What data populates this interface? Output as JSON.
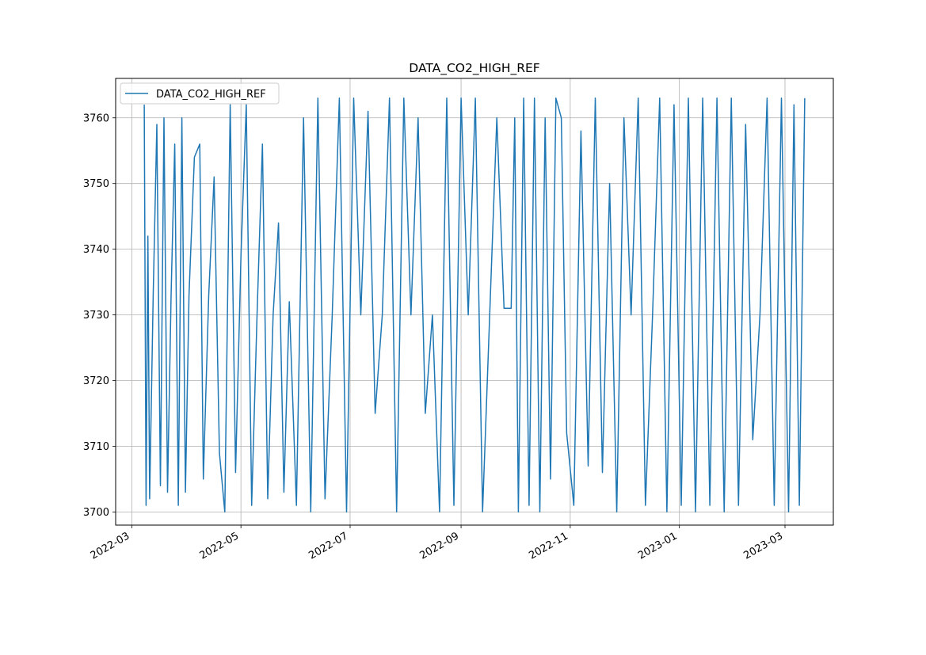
{
  "chart_data": {
    "type": "line",
    "title": "DATA_CO2_HIGH_REF",
    "xlabel": "",
    "ylabel": "",
    "grid": true,
    "legend_position": "top-left",
    "color": "#1f77b4",
    "xlim": [
      "2022-02-20",
      "2023-03-28"
    ],
    "ylim": [
      3698,
      3766
    ],
    "x_ticks": [
      "2022-03-01",
      "2022-05-01",
      "2022-07-01",
      "2022-09-01",
      "2022-11-01",
      "2023-01-01",
      "2023-03-01"
    ],
    "x_tick_labels": [
      "2022-03",
      "2022-05",
      "2022-07",
      "2022-09",
      "2022-11",
      "2023-01",
      "2023-03"
    ],
    "y_ticks": [
      3700,
      3710,
      3720,
      3730,
      3740,
      3750,
      3760
    ],
    "series": [
      {
        "name": "DATA_CO2_HIGH_REF",
        "x": [
          "2022-03-08",
          "2022-03-09",
          "2022-03-10",
          "2022-03-11",
          "2022-03-13",
          "2022-03-15",
          "2022-03-17",
          "2022-03-19",
          "2022-03-21",
          "2022-03-23",
          "2022-03-25",
          "2022-03-27",
          "2022-03-29",
          "2022-03-31",
          "2022-04-02",
          "2022-04-05",
          "2022-04-08",
          "2022-04-10",
          "2022-04-13",
          "2022-04-16",
          "2022-04-19",
          "2022-04-22",
          "2022-04-25",
          "2022-04-28",
          "2022-05-01",
          "2022-05-04",
          "2022-05-07",
          "2022-05-10",
          "2022-05-13",
          "2022-05-16",
          "2022-05-19",
          "2022-05-22",
          "2022-05-25",
          "2022-05-28",
          "2022-06-01",
          "2022-06-05",
          "2022-06-09",
          "2022-06-13",
          "2022-06-17",
          "2022-06-21",
          "2022-06-25",
          "2022-06-29",
          "2022-07-03",
          "2022-07-07",
          "2022-07-11",
          "2022-07-15",
          "2022-07-19",
          "2022-07-23",
          "2022-07-27",
          "2022-07-31",
          "2022-08-04",
          "2022-08-08",
          "2022-08-12",
          "2022-08-16",
          "2022-08-20",
          "2022-08-24",
          "2022-08-28",
          "2022-09-01",
          "2022-09-05",
          "2022-09-09",
          "2022-09-13",
          "2022-09-17",
          "2022-09-21",
          "2022-09-25",
          "2022-09-29",
          "2022-10-01",
          "2022-10-03",
          "2022-10-06",
          "2022-10-09",
          "2022-10-12",
          "2022-10-15",
          "2022-10-18",
          "2022-10-21",
          "2022-10-24",
          "2022-10-27",
          "2022-10-30",
          "2022-11-03",
          "2022-11-07",
          "2022-11-11",
          "2022-11-15",
          "2022-11-19",
          "2022-11-23",
          "2022-11-27",
          "2022-12-01",
          "2022-12-05",
          "2022-12-09",
          "2022-12-13",
          "2022-12-17",
          "2022-12-21",
          "2022-12-25",
          "2022-12-29",
          "2023-01-02",
          "2023-01-06",
          "2023-01-10",
          "2023-01-14",
          "2023-01-18",
          "2023-01-22",
          "2023-01-26",
          "2023-01-30",
          "2023-02-03",
          "2023-02-07",
          "2023-02-11",
          "2023-02-15",
          "2023-02-19",
          "2023-02-23",
          "2023-02-27",
          "2023-03-03",
          "2023-03-06",
          "2023-03-09",
          "2023-03-12"
        ],
        "y": [
          3762,
          3701,
          3742,
          3702,
          3733,
          3759,
          3704,
          3760,
          3703,
          3733,
          3756,
          3701,
          3760,
          3703,
          3733,
          3754,
          3756,
          3705,
          3733,
          3751,
          3709,
          3700,
          3762,
          3706,
          3739,
          3762,
          3701,
          3730,
          3756,
          3702,
          3730,
          3744,
          3703,
          3732,
          3701,
          3760,
          3700,
          3763,
          3702,
          3730,
          3763,
          3700,
          3763,
          3730,
          3761,
          3715,
          3730,
          3763,
          3700,
          3763,
          3730,
          3760,
          3715,
          3730,
          3700,
          3763,
          3701,
          3763,
          3730,
          3763,
          3700,
          3730,
          3760,
          3731,
          3731,
          3760,
          3700,
          3763,
          3701,
          3763,
          3700,
          3760,
          3705,
          3763,
          3760,
          3712,
          3701,
          3758,
          3707,
          3763,
          3706,
          3750,
          3700,
          3760,
          3730,
          3763,
          3701,
          3730,
          3763,
          3700,
          3762,
          3701,
          3763,
          3700,
          3763,
          3701,
          3763,
          3700,
          3763,
          3701,
          3759,
          3711,
          3730,
          3763,
          3701,
          3763,
          3700,
          3762,
          3701,
          3763
        ]
      }
    ]
  }
}
